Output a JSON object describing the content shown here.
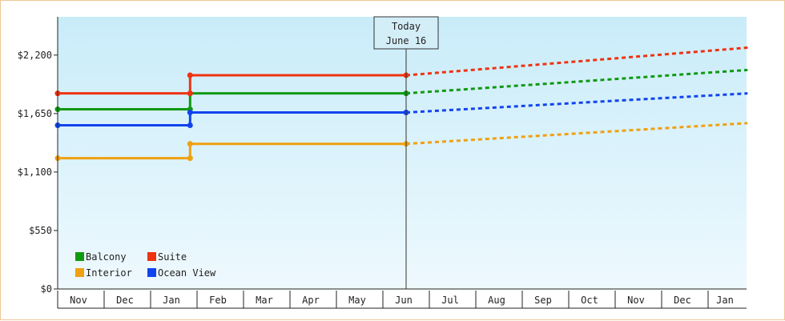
{
  "chart_data": {
    "type": "line",
    "y_ticks": [
      "$0",
      "$550",
      "$1,100",
      "$1,650",
      "$2,200"
    ],
    "y_tick_values": [
      0,
      550,
      1100,
      1650,
      2200
    ],
    "ylim": [
      0,
      2560
    ],
    "months": [
      "Nov",
      "Dec",
      "Jan",
      "Feb",
      "Mar",
      "Apr",
      "May",
      "Jun",
      "Jul",
      "Aug",
      "Sep",
      "Oct",
      "Nov",
      "Dec",
      "Jan"
    ],
    "xlim": [
      0,
      14.85
    ],
    "today": {
      "line1": "Today",
      "line2": "June 16",
      "x": 7.5
    },
    "legend_placement": "bottom-left",
    "series": [
      {
        "name": "Balcony",
        "color": "#119911",
        "solid": [
          [
            0,
            1690
          ],
          [
            2.85,
            1690
          ],
          [
            2.85,
            1840
          ],
          [
            7.5,
            1840
          ]
        ],
        "markers": [
          [
            0,
            1690
          ],
          [
            2.85,
            1690
          ],
          [
            2.85,
            1840
          ],
          [
            7.5,
            1840
          ]
        ],
        "projected": [
          [
            7.5,
            1840
          ],
          [
            14.85,
            2060
          ]
        ]
      },
      {
        "name": "Suite",
        "color": "#ee3311",
        "solid": [
          [
            0,
            1840
          ],
          [
            2.85,
            1840
          ],
          [
            2.85,
            2010
          ],
          [
            7.5,
            2010
          ]
        ],
        "markers": [
          [
            0,
            1840
          ],
          [
            2.85,
            1840
          ],
          [
            2.85,
            2010
          ],
          [
            7.5,
            2010
          ]
        ],
        "projected": [
          [
            7.5,
            2010
          ],
          [
            14.85,
            2270
          ]
        ]
      },
      {
        "name": "Interior",
        "color": "#f0a010",
        "solid": [
          [
            0,
            1230
          ],
          [
            2.85,
            1230
          ],
          [
            2.85,
            1365
          ],
          [
            7.5,
            1365
          ]
        ],
        "markers": [
          [
            0,
            1230
          ],
          [
            2.85,
            1230
          ],
          [
            2.85,
            1365
          ],
          [
            7.5,
            1365
          ]
        ],
        "projected": [
          [
            7.5,
            1365
          ],
          [
            14.85,
            1560
          ]
        ]
      },
      {
        "name": "Ocean View",
        "color": "#1144ee",
        "solid": [
          [
            0,
            1540
          ],
          [
            2.85,
            1540
          ],
          [
            2.85,
            1660
          ],
          [
            7.5,
            1660
          ]
        ],
        "markers": [
          [
            0,
            1540
          ],
          [
            2.85,
            1540
          ],
          [
            2.85,
            1660
          ],
          [
            7.5,
            1660
          ]
        ],
        "projected": [
          [
            7.5,
            1660
          ],
          [
            14.85,
            1840
          ]
        ]
      }
    ],
    "legend_order": [
      "Balcony",
      "Suite",
      "Interior",
      "Ocean View"
    ]
  }
}
